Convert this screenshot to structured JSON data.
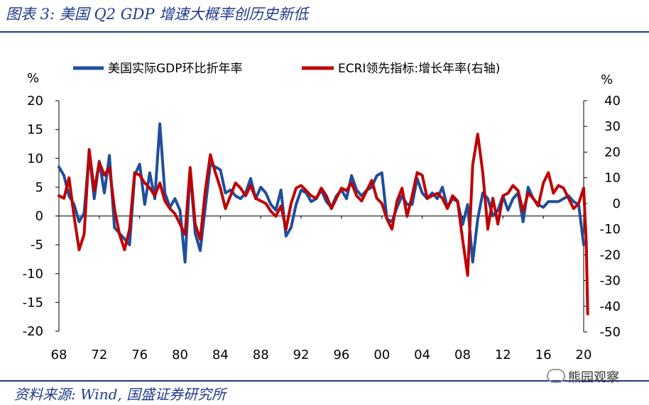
{
  "header": {
    "title": "图表 3:  美国 Q2 GDP 增速大概率创历史新低"
  },
  "footer": {
    "source": "资料来源:  Wind, 国盛证券研究所",
    "watermark": "熊园观察"
  },
  "chart_data": {
    "type": "line",
    "title": "图表 3:  美国 Q2 GDP 增速大概率创历史新低",
    "xlabel": "",
    "ylabel_left": "%",
    "ylabel_right": "%",
    "x_ticks": [
      "68",
      "72",
      "76",
      "80",
      "84",
      "88",
      "92",
      "96",
      "00",
      "04",
      "08",
      "12",
      "16",
      "20"
    ],
    "y_left_ticks": [
      "20",
      "15",
      "10",
      "5",
      "0",
      "-5",
      "-10",
      "-15",
      "-20"
    ],
    "y_right_ticks": [
      "40",
      "30",
      "20",
      "10",
      "0",
      "-10",
      "-20",
      "-30",
      "-40",
      "-50"
    ],
    "ylim_left": [
      -20,
      20
    ],
    "ylim_right": [
      -50,
      40
    ],
    "xlim": [
      1968,
      2020
    ],
    "colors": {
      "gdp": "#1f4e9c",
      "ecri": "#c00000",
      "axis": "#000000"
    },
    "series": [
      {
        "name": "美国实际GDP环比折年率",
        "axis": "left",
        "x": [
          1968.0,
          1968.5,
          1969.0,
          1969.5,
          1970.0,
          1970.5,
          1971.0,
          1971.5,
          1972.0,
          1972.5,
          1973.0,
          1973.5,
          1974.0,
          1974.5,
          1975.0,
          1975.5,
          1976.0,
          1976.5,
          1977.0,
          1977.5,
          1978.0,
          1978.5,
          1979.0,
          1979.5,
          1980.0,
          1980.5,
          1981.0,
          1981.5,
          1982.0,
          1982.5,
          1983.0,
          1983.5,
          1984.0,
          1984.5,
          1985.0,
          1985.5,
          1986.0,
          1986.5,
          1987.0,
          1987.5,
          1988.0,
          1988.5,
          1989.0,
          1989.5,
          1990.0,
          1990.5,
          1991.0,
          1991.5,
          1992.0,
          1992.5,
          1993.0,
          1993.5,
          1994.0,
          1994.5,
          1995.0,
          1995.5,
          1996.0,
          1996.5,
          1997.0,
          1997.5,
          1998.0,
          1998.5,
          1999.0,
          1999.5,
          2000.0,
          2000.5,
          2001.0,
          2001.5,
          2002.0,
          2002.5,
          2003.0,
          2003.5,
          2004.0,
          2004.5,
          2005.0,
          2005.5,
          2006.0,
          2006.5,
          2007.0,
          2007.5,
          2008.0,
          2008.5,
          2009.0,
          2009.5,
          2010.0,
          2010.5,
          2011.0,
          2011.5,
          2012.0,
          2012.5,
          2013.0,
          2013.5,
          2014.0,
          2014.5,
          2015.0,
          2015.5,
          2016.0,
          2016.5,
          2017.0,
          2017.5,
          2018.0,
          2018.5,
          2019.0,
          2019.5,
          2020.0
        ],
        "values": [
          8.5,
          7.0,
          3.5,
          2.0,
          -1.0,
          0.5,
          11.0,
          3.0,
          9.5,
          4.0,
          10.5,
          -2.0,
          -3.0,
          -4.0,
          -5.0,
          7.0,
          9.0,
          2.0,
          7.5,
          3.0,
          16.0,
          4.0,
          1.5,
          3.0,
          1.0,
          -8.0,
          8.0,
          -3.0,
          -6.0,
          1.5,
          9.0,
          8.5,
          8.0,
          4.0,
          4.5,
          3.5,
          3.0,
          4.0,
          6.5,
          3.0,
          5.0,
          4.0,
          2.0,
          1.0,
          4.5,
          -3.5,
          -2.0,
          2.0,
          4.5,
          4.0,
          2.5,
          3.0,
          4.5,
          2.5,
          1.5,
          3.5,
          4.5,
          3.0,
          7.0,
          4.5,
          3.5,
          4.5,
          5.0,
          7.0,
          7.5,
          -0.5,
          -1.0,
          1.5,
          3.5,
          2.0,
          2.0,
          6.5,
          4.0,
          3.0,
          4.0,
          3.0,
          5.0,
          1.5,
          3.0,
          2.5,
          -1.5,
          2.0,
          -8.0,
          -0.5,
          4.0,
          3.0,
          0.0,
          1.0,
          3.5,
          1.0,
          3.0,
          4.0,
          -1.0,
          5.0,
          3.0,
          2.0,
          1.5,
          2.5,
          2.5,
          2.5,
          3.0,
          3.5,
          2.5,
          2.0,
          -5.0
        ]
      },
      {
        "name": "ECRI领先指标:增长年率(右轴)",
        "axis": "right",
        "x": [
          1968.0,
          1968.5,
          1969.0,
          1969.5,
          1970.0,
          1970.5,
          1971.0,
          1971.5,
          1972.0,
          1972.5,
          1973.0,
          1973.5,
          1974.0,
          1974.5,
          1975.0,
          1975.5,
          1976.0,
          1976.5,
          1977.0,
          1977.5,
          1978.0,
          1978.5,
          1979.0,
          1979.5,
          1980.0,
          1980.5,
          1981.0,
          1981.5,
          1982.0,
          1982.5,
          1983.0,
          1983.5,
          1984.0,
          1984.5,
          1985.0,
          1985.5,
          1986.0,
          1986.5,
          1987.0,
          1987.5,
          1988.0,
          1988.5,
          1989.0,
          1989.5,
          1990.0,
          1990.5,
          1991.0,
          1991.5,
          1992.0,
          1992.5,
          1993.0,
          1993.5,
          1994.0,
          1994.5,
          1995.0,
          1995.5,
          1996.0,
          1996.5,
          1997.0,
          1997.5,
          1998.0,
          1998.5,
          1999.0,
          1999.5,
          2000.0,
          2000.5,
          2001.0,
          2001.5,
          2002.0,
          2002.5,
          2003.0,
          2003.5,
          2004.0,
          2004.5,
          2005.0,
          2005.5,
          2006.0,
          2006.5,
          2007.0,
          2007.5,
          2008.0,
          2008.5,
          2009.0,
          2009.5,
          2010.0,
          2010.5,
          2011.0,
          2011.5,
          2012.0,
          2012.5,
          2013.0,
          2013.5,
          2014.0,
          2014.5,
          2015.0,
          2015.5,
          2016.0,
          2016.5,
          2017.0,
          2017.5,
          2018.0,
          2018.5,
          2019.0,
          2019.5,
          2020.0,
          2020.25,
          2020.4
        ],
        "values": [
          3.0,
          2.0,
          10.0,
          -5.0,
          -18.0,
          -12.0,
          21.0,
          5.0,
          16.0,
          11.0,
          14.0,
          -2.0,
          -12.0,
          -18.0,
          -10.0,
          12.0,
          11.0,
          8.0,
          6.0,
          3.0,
          8.0,
          1.0,
          -2.0,
          -4.0,
          -8.0,
          -12.0,
          14.0,
          -8.0,
          -14.0,
          5.0,
          19.0,
          12.0,
          6.0,
          -2.0,
          3.0,
          8.0,
          6.0,
          3.0,
          7.0,
          2.0,
          1.0,
          0.0,
          -3.0,
          -5.0,
          -1.0,
          -10.0,
          0.0,
          6.0,
          7.0,
          5.0,
          3.0,
          2.0,
          6.0,
          3.0,
          -2.0,
          2.0,
          6.0,
          5.0,
          8.0,
          3.0,
          1.0,
          5.0,
          9.0,
          2.0,
          0.0,
          -6.0,
          -10.0,
          1.0,
          6.0,
          -5.0,
          3.0,
          12.0,
          11.0,
          2.0,
          3.0,
          4.0,
          2.0,
          -2.0,
          3.0,
          1.0,
          -14.0,
          -28.0,
          15.0,
          27.0,
          12.0,
          -10.0,
          2.0,
          -8.0,
          3.0,
          4.0,
          7.0,
          5.0,
          -3.0,
          4.0,
          2.0,
          -1.0,
          8.0,
          12.0,
          4.0,
          7.0,
          6.0,
          2.0,
          -2.0,
          0.0,
          6.0,
          -15.0,
          -43.0
        ]
      }
    ]
  }
}
